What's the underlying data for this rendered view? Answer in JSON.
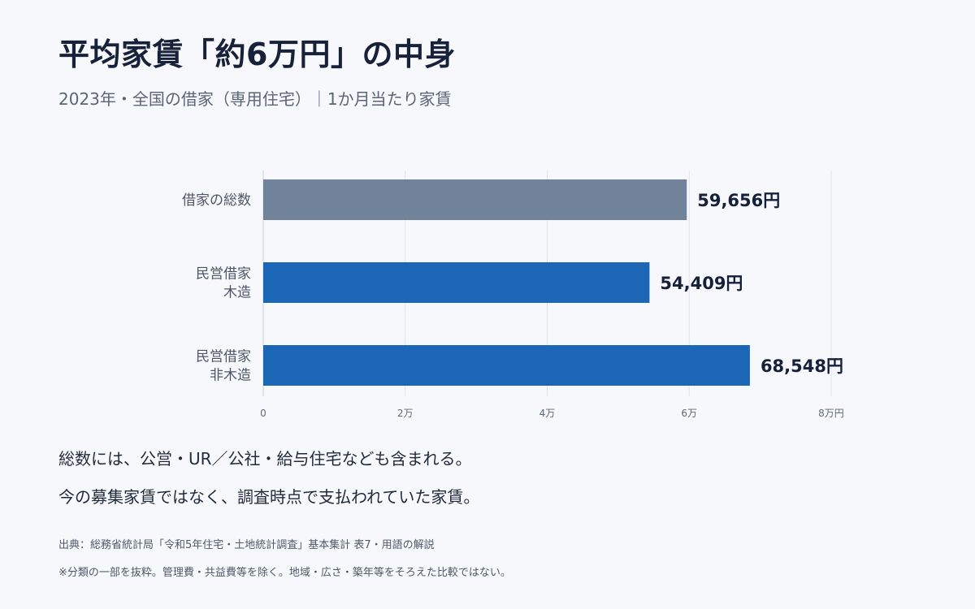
{
  "title": "平均家賃「約6万円」の中身",
  "subtitle": "2023年・全国の借家（専用住宅）｜1か月当たり家賃",
  "notes": [
    "総数には、公営・UR／公社・給与住宅なども含まれる。",
    "今の募集家賃ではなく、調査時点で支払われていた家賃。"
  ],
  "source": "出典：総務省統計局「令和5年住宅・土地統計調査」基本集計 表7・用語の解説",
  "disclaimer": "※分類の一部を抜粋。管理費・共益費等を除く。地域・広さ・築年等をそろえた比較ではない。",
  "chart_data": {
    "type": "bar",
    "orientation": "horizontal",
    "categories": [
      [
        "借家の総数"
      ],
      [
        "民営借家",
        "木造"
      ],
      [
        "民営借家",
        "非木造"
      ]
    ],
    "values": [
      59656,
      54409,
      68548
    ],
    "value_labels": [
      "59,656円",
      "54,409円",
      "68,548円"
    ],
    "colors": [
      "#71829b",
      "#1b67b5",
      "#1b67b5"
    ],
    "xlim": [
      0,
      80000
    ],
    "ticks": [
      0,
      20000,
      40000,
      60000,
      80000
    ],
    "tick_labels": [
      "0",
      "2万",
      "4万",
      "6万",
      "8万円"
    ],
    "grid": true,
    "gridline_color": "#dde3ec"
  }
}
